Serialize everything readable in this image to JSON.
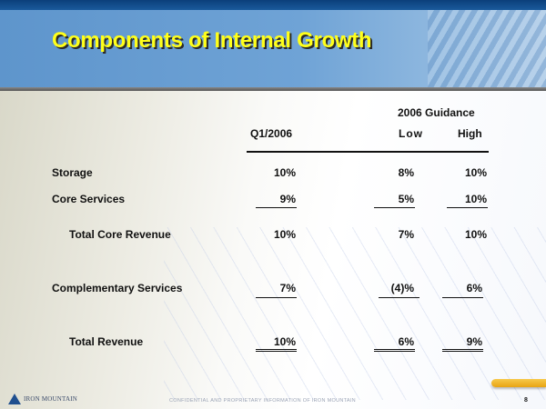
{
  "slide": {
    "title": "Components of Internal Growth",
    "page_number": "8"
  },
  "table": {
    "group_header": "2006 Guidance",
    "columns": [
      "Q1/2006",
      "Low",
      "High"
    ],
    "rows": [
      {
        "label": "Storage",
        "q1": "10%",
        "low": "8%",
        "high": "10%"
      },
      {
        "label": "Core Services",
        "q1": "9%",
        "low": "5%",
        "high": "10%"
      },
      {
        "label": "Total Core Revenue",
        "q1": "10%",
        "low": "7%",
        "high": "10%"
      },
      {
        "label": "Complementary Services",
        "q1": "7%",
        "low": "(4)%",
        "high": "6%"
      },
      {
        "label": "Total Revenue",
        "q1": "10%",
        "low": "6%",
        "high": "9%"
      }
    ]
  },
  "footer": {
    "logo_text": "IRON MOUNTAIN",
    "confidential": "CONFIDENTIAL AND PROPRIETARY INFORMATION OF IRON MOUNTAIN"
  },
  "colors": {
    "title": "#ffff1a",
    "header_bg": "#6fa3d6",
    "topbar": "#0b3f7a"
  }
}
